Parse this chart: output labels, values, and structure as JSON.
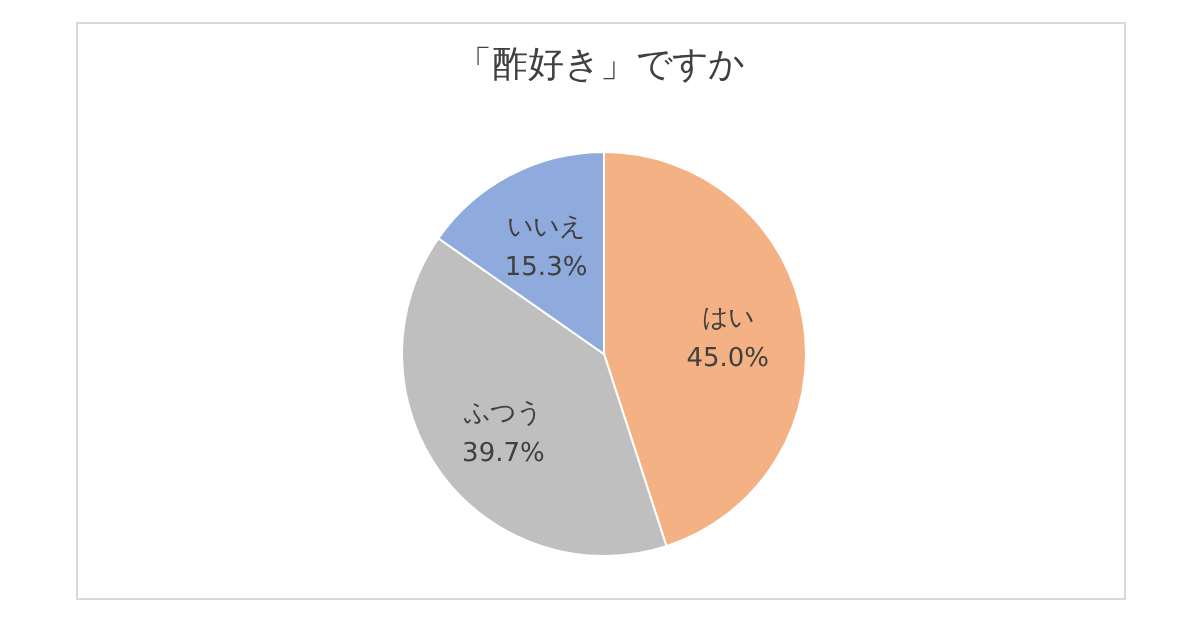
{
  "chart_data": {
    "type": "pie",
    "title": "「酢好き」ですか",
    "categories": [
      "はい",
      "ふつう",
      "いいえ"
    ],
    "values": [
      45.0,
      39.7,
      15.3
    ],
    "value_labels": [
      "45.0%",
      "39.7%",
      "15.3%"
    ],
    "colors": [
      "#f4b183",
      "#bfbfbf",
      "#8faadc"
    ]
  }
}
